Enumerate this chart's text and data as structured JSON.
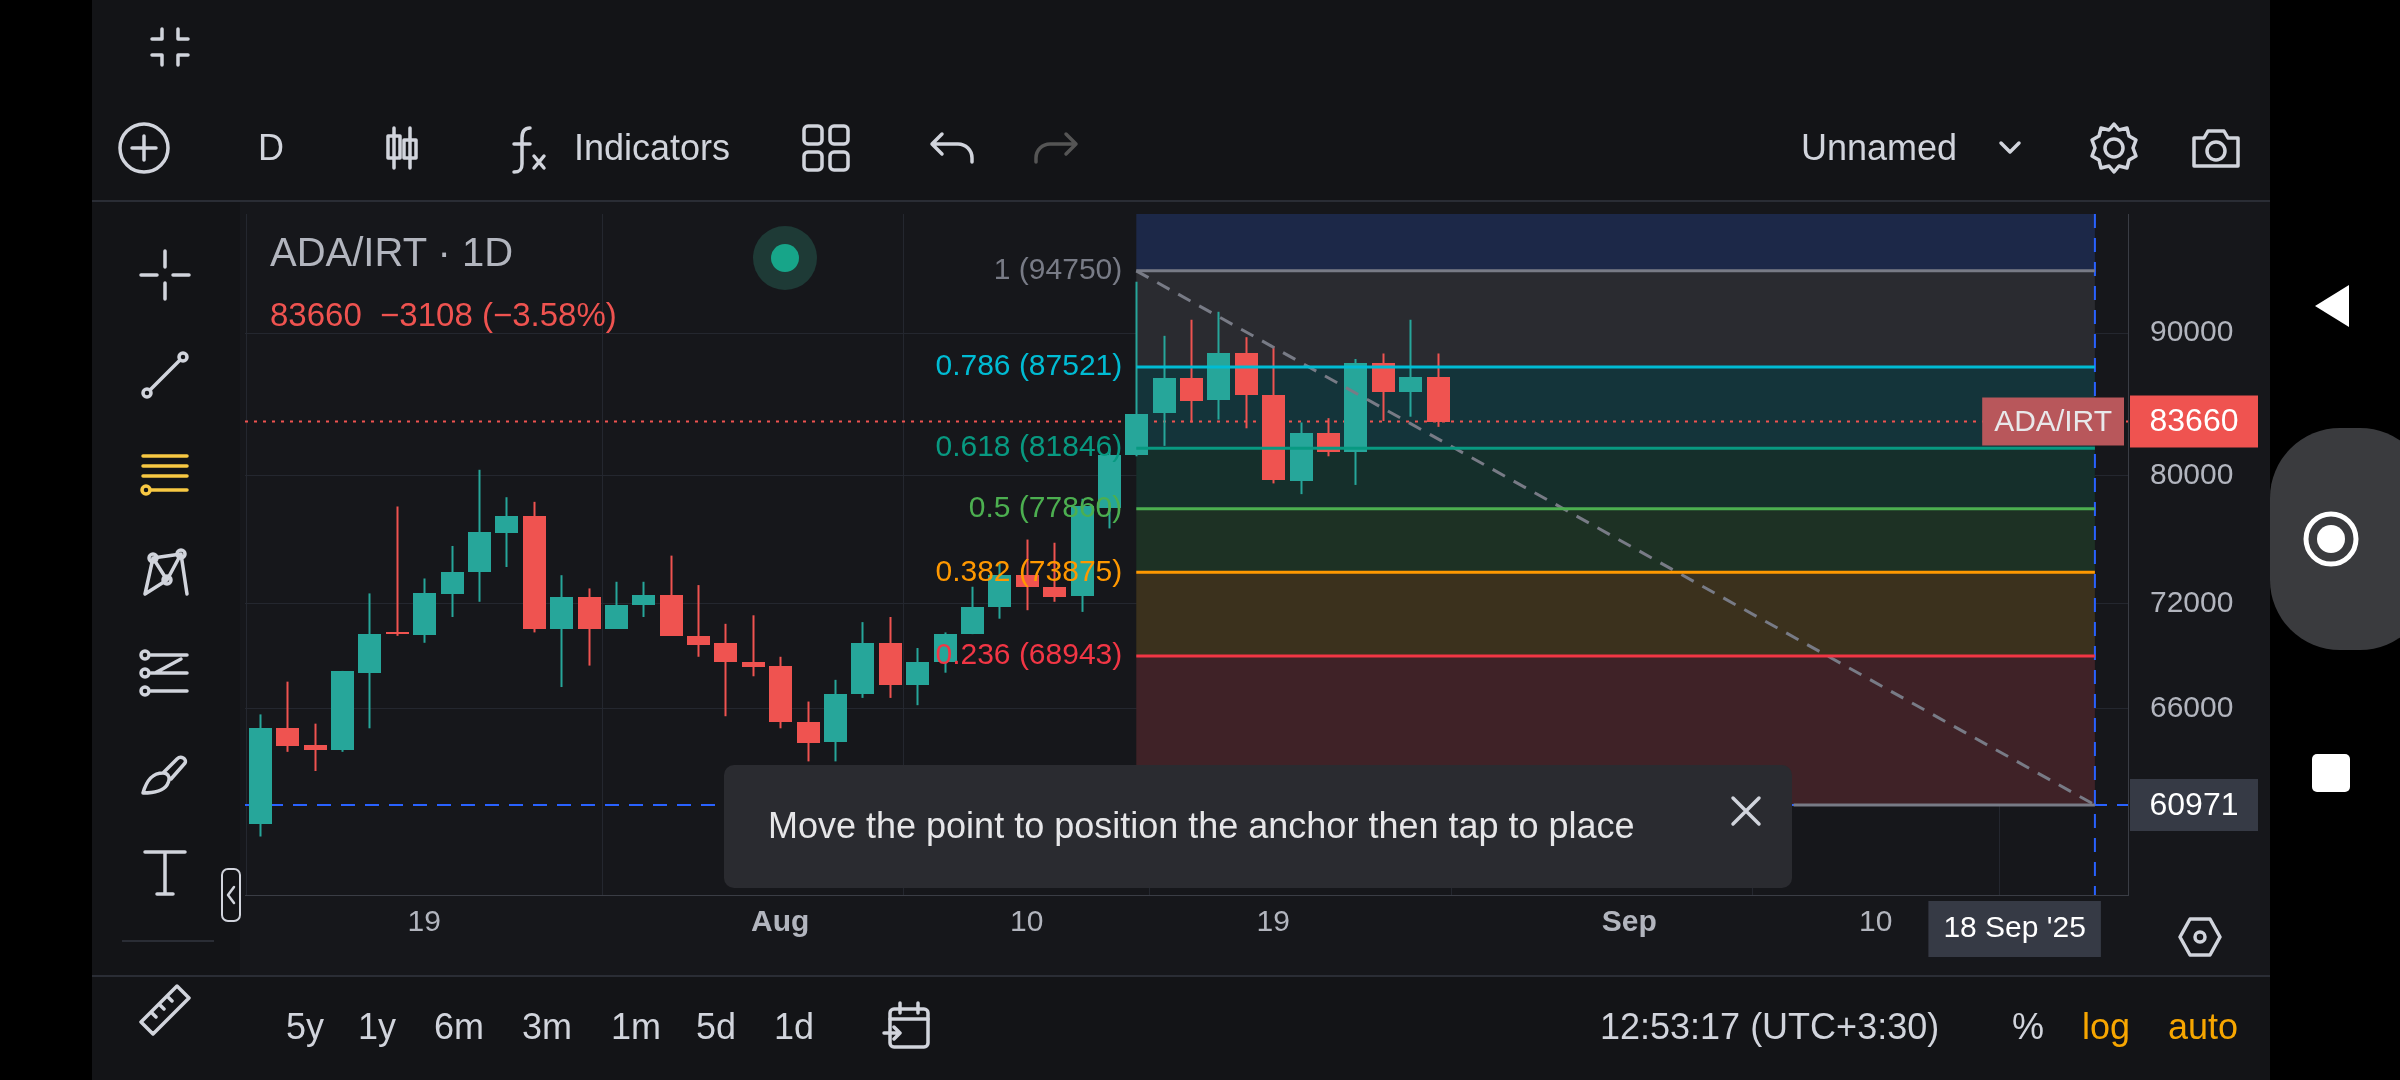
{
  "chart_data": {
    "type": "candlestick",
    "title": "ADA/IRT · 1D",
    "subtitle": "83660  −3108 (−3.58%)",
    "x": [
      "2025-07-13",
      "2025-07-14",
      "2025-07-15",
      "2025-07-16",
      "2025-07-17",
      "2025-07-18",
      "2025-07-19",
      "2025-07-20",
      "2025-07-21",
      "2025-07-22",
      "2025-07-23",
      "2025-07-24",
      "2025-07-25",
      "2025-07-26",
      "2025-07-27",
      "2025-07-28",
      "2025-07-29",
      "2025-07-30",
      "2025-07-31",
      "2025-08-01",
      "2025-08-02",
      "2025-08-03",
      "2025-08-04",
      "2025-08-05",
      "2025-08-06",
      "2025-08-07",
      "2025-08-08",
      "2025-08-09",
      "2025-08-10",
      "2025-08-11",
      "2025-08-12",
      "2025-08-13",
      "2025-08-14",
      "2025-08-15",
      "2025-08-16",
      "2025-08-17",
      "2025-08-18",
      "2025-08-19",
      "2025-08-20",
      "2025-08-21",
      "2025-08-22",
      "2025-08-23",
      "2025-08-24",
      "2025-08-25"
    ],
    "ohlc": [
      [
        60000,
        65700,
        59400,
        64950
      ],
      [
        64950,
        67500,
        63700,
        64000
      ],
      [
        64050,
        65200,
        62700,
        63800
      ],
      [
        63800,
        68100,
        63700,
        68100
      ],
      [
        68000,
        72600,
        64950,
        70200
      ],
      [
        70300,
        78000,
        70100,
        70200
      ],
      [
        70100,
        73500,
        69700,
        72600
      ],
      [
        72600,
        75500,
        71200,
        73900
      ],
      [
        73900,
        80400,
        72100,
        76400
      ],
      [
        76300,
        78600,
        74200,
        77400
      ],
      [
        77400,
        78300,
        70300,
        70500
      ],
      [
        70500,
        73700,
        67200,
        72400
      ],
      [
        72400,
        72900,
        68400,
        70500
      ],
      [
        70500,
        73300,
        70500,
        71900
      ],
      [
        71900,
        73300,
        71200,
        72500
      ],
      [
        72500,
        74900,
        70100,
        70100
      ],
      [
        70100,
        73100,
        68900,
        69600
      ],
      [
        69700,
        70800,
        65600,
        68600
      ],
      [
        68600,
        71300,
        67800,
        68300
      ],
      [
        68400,
        68900,
        64950,
        65300
      ],
      [
        65300,
        66400,
        63200,
        64200
      ],
      [
        64200,
        67600,
        63200,
        66800
      ],
      [
        66800,
        70900,
        66600,
        69700
      ],
      [
        69700,
        71200,
        66600,
        67300
      ],
      [
        67300,
        69400,
        66200,
        68600
      ],
      [
        68600,
        70300,
        68000,
        70200
      ],
      [
        70200,
        73000,
        70200,
        71800
      ],
      [
        71800,
        74500,
        71100,
        73700
      ],
      [
        73700,
        75900,
        71600,
        73000
      ],
      [
        73000,
        75700,
        72100,
        72400
      ],
      [
        72400,
        78500,
        71500,
        78000
      ],
      [
        77900,
        81800,
        76600,
        81400
      ],
      [
        81400,
        93900,
        81300,
        84200
      ],
      [
        84200,
        89800,
        82000,
        86700
      ],
      [
        86700,
        91000,
        83600,
        85100
      ],
      [
        85100,
        91600,
        83800,
        88500
      ],
      [
        88500,
        89700,
        83200,
        85500
      ],
      [
        85500,
        89000,
        79500,
        79700
      ],
      [
        79700,
        83600,
        78800,
        82900
      ],
      [
        82900,
        83900,
        81300,
        81600
      ],
      [
        81600,
        88100,
        79400,
        87800
      ],
      [
        87800,
        88500,
        83700,
        85700
      ],
      [
        85700,
        91000,
        84000,
        86800
      ],
      [
        86800,
        88500,
        83300,
        83660
      ]
    ],
    "colors": [
      "#26a69a",
      "#ef5350",
      "#ef5350",
      "#26a69a",
      "#26a69a",
      "#ef5350",
      "#26a69a",
      "#26a69a",
      "#26a69a",
      "#26a69a",
      "#ef5350",
      "#26a69a",
      "#ef5350",
      "#26a69a",
      "#26a69a",
      "#ef5350",
      "#ef5350",
      "#ef5350",
      "#ef5350",
      "#ef5350",
      "#ef5350",
      "#26a69a",
      "#26a69a",
      "#ef5350",
      "#26a69a",
      "#26a69a",
      "#26a69a",
      "#26a69a",
      "#ef5350",
      "#ef5350",
      "#26a69a",
      "#26a69a",
      "#26a69a",
      "#26a69a",
      "#ef5350",
      "#26a69a",
      "#ef5350",
      "#ef5350",
      "#26a69a",
      "#ef5350",
      "#26a69a",
      "#ef5350",
      "#26a69a",
      "#ef5350"
    ],
    "series": [
      {
        "type": "line",
        "name": "1 (94750)",
        "color": "#787b86",
        "x": [
          "2025-08-14",
          "2025-09-18"
        ],
        "values": [
          94750,
          94750
        ]
      },
      {
        "type": "line",
        "name": "0.786 (87521)",
        "color": "#00bcd4",
        "x": [
          "2025-08-14",
          "2025-09-18"
        ],
        "values": [
          87521,
          87521
        ]
      },
      {
        "type": "line",
        "name": "0.618 (81846)",
        "color": "#089981",
        "x": [
          "2025-08-14",
          "2025-09-18"
        ],
        "values": [
          81846,
          81846
        ]
      },
      {
        "type": "line",
        "name": "0.5 (77860)",
        "color": "#4caf50",
        "x": [
          "2025-08-14",
          "2025-09-18"
        ],
        "values": [
          77860,
          77860
        ]
      },
      {
        "type": "line",
        "name": "0.382 (73875)",
        "color": "#ff9800",
        "x": [
          "2025-08-14",
          "2025-09-18"
        ],
        "values": [
          73875,
          73875
        ]
      },
      {
        "type": "line",
        "name": "0.236 (68943)",
        "color": "#f23645",
        "x": [
          "2025-08-14",
          "2025-09-18"
        ],
        "values": [
          68943,
          68943
        ]
      },
      {
        "type": "line",
        "color": "#787b86",
        "x": [
          "2025-09-07",
          "2025-09-18"
        ],
        "values": [
          60971,
          60971
        ]
      },
      {
        "type": "line",
        "color": "#787b86",
        "line_style": "dashed",
        "x": [
          "2025-08-14",
          "2025-09-18"
        ],
        "values": [
          94750,
          60971
        ]
      }
    ],
    "bands": [
      {
        "axis": "y",
        "from": 94750,
        "to": 99300,
        "color": "#1c2848"
      },
      {
        "axis": "y",
        "from": 87521,
        "to": 94750,
        "color": "#2a2b30"
      },
      {
        "axis": "y",
        "from": 81846,
        "to": 87521,
        "color": "#14343a"
      },
      {
        "axis": "y",
        "from": 77860,
        "to": 81846,
        "color": "#152f2b"
      },
      {
        "axis": "y",
        "from": 73875,
        "to": 77860,
        "color": "#1d3124"
      },
      {
        "axis": "y",
        "from": 68943,
        "to": 73875,
        "color": "#3b311d"
      },
      {
        "axis": "y",
        "from": 60971,
        "to": 68943,
        "color": "#3f2227"
      }
    ],
    "ref_lines": [
      {
        "axis": "y",
        "value": 83660,
        "label": "83660",
        "color": "#ef5350",
        "line_style": "dotted"
      },
      {
        "axis": "y",
        "value": 60971,
        "label": "60971",
        "color": "#2962ff",
        "line_style": "dashed"
      },
      {
        "axis": "x",
        "value": "2025-09-18",
        "label": "18 Sep '25",
        "color": "#2962ff",
        "line_style": "dashed"
      }
    ],
    "annotations": [
      {
        "text": "ADA/IRT",
        "y": 83660
      },
      "D",
      "Indicators",
      "Unnamed",
      "5y",
      "1y",
      "6m",
      "3m",
      "1m",
      "5d",
      "1d",
      "12:53:17 (UTC+3:30)",
      "%",
      "log",
      "auto",
      "Move the point to position the anchor then tap to place"
    ],
    "xlim": [
      "2025-07-12T11:00",
      "2025-09-19T05:00"
    ],
    "xticks": [
      {
        "value": "2025-07-19",
        "label": "19"
      },
      {
        "value": "2025-08-01",
        "label": "Aug"
      },
      {
        "value": "2025-08-10",
        "label": "10"
      },
      {
        "value": "2025-08-19",
        "label": "19"
      },
      {
        "value": "2025-09-01",
        "label": "Sep"
      },
      {
        "value": "2025-09-10",
        "label": "10"
      }
    ],
    "ylim": [
      56600,
      99300
    ],
    "yticks": [
      66000,
      72000,
      80000,
      90000
    ],
    "log": true,
    "grid": true,
    "legend": false,
    "marker": "none"
  }
}
